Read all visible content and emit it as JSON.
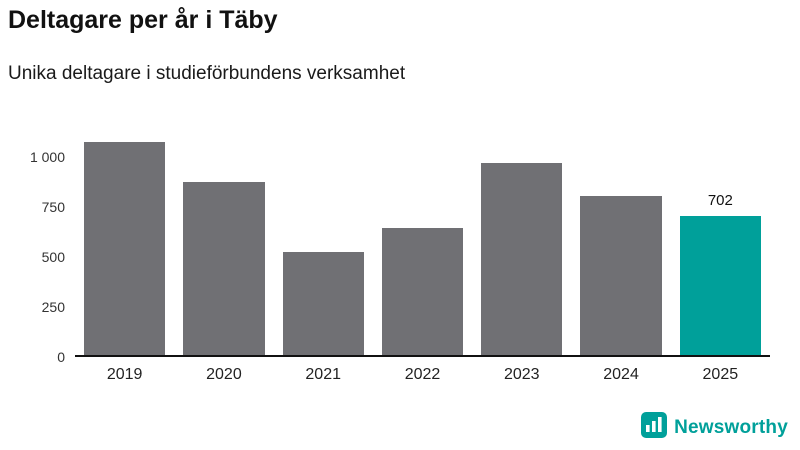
{
  "header": {
    "title": "Deltagare per år i Täby",
    "subtitle": "Unika deltagare i studieförbundens verksamhet"
  },
  "chart_data": {
    "type": "bar",
    "title": "Deltagare per år i Täby",
    "subtitle": "Unika deltagare i studieförbundens verksamhet",
    "categories": [
      "2019",
      "2020",
      "2021",
      "2022",
      "2023",
      "2024",
      "2025"
    ],
    "values": [
      1075,
      875,
      520,
      640,
      970,
      800,
      702
    ],
    "highlight_index": 6,
    "data_labels": {
      "6": "702"
    },
    "yticks": [
      0,
      250,
      500,
      750,
      1000
    ],
    "ytick_labels": [
      "0",
      "250",
      "500",
      "750",
      "1 000"
    ],
    "ylim": [
      0,
      1100
    ],
    "xlabel": "",
    "ylabel": "",
    "grid": false,
    "legend": "none",
    "bar_color": "#707074",
    "highlight_color": "#00a09a",
    "axis_color": "#111111"
  },
  "branding": {
    "logo_text": "Newsworthy",
    "brand_color": "#00a09a"
  }
}
